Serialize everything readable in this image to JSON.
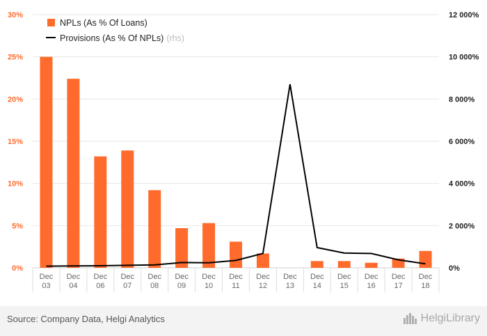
{
  "chart_data": {
    "type": "bar+line",
    "categories": [
      "Dec\n03",
      "Dec\n04",
      "Dec\n06",
      "Dec\n07",
      "Dec\n08",
      "Dec\n09",
      "Dec\n10",
      "Dec\n11",
      "Dec\n12",
      "Dec\n13",
      "Dec\n14",
      "Dec\n15",
      "Dec\n16",
      "Dec\n17",
      "Dec\n18"
    ],
    "series": [
      {
        "name": "NPLs (As % Of Loans)",
        "type": "bar",
        "axis": "left",
        "color": "#ff6b2c",
        "values": [
          25.0,
          22.4,
          13.2,
          13.9,
          9.2,
          4.7,
          5.3,
          3.1,
          1.7,
          null,
          0.8,
          0.8,
          0.6,
          1.1,
          2.0
        ]
      },
      {
        "name": "Provisions (As % Of NPLs)",
        "type": "line",
        "axis": "right",
        "color": "#000000",
        "values": [
          80,
          90,
          100,
          120,
          140,
          250,
          240,
          350,
          680,
          8700,
          960,
          700,
          680,
          380,
          190
        ]
      }
    ],
    "left_axis": {
      "min": 0,
      "max": 30,
      "ticks": [
        0,
        5,
        10,
        15,
        20,
        25,
        30
      ],
      "tick_labels": [
        "0%",
        "5%",
        "10%",
        "15%",
        "20%",
        "25%",
        "30%"
      ],
      "color": "#ff6b2c"
    },
    "right_axis": {
      "min": 0,
      "max": 12000,
      "ticks": [
        0,
        2000,
        4000,
        6000,
        8000,
        10000,
        12000
      ],
      "tick_labels": [
        "0%",
        "2 000%",
        "4 000%",
        "6 000%",
        "8 000%",
        "10 000%",
        "12 000%"
      ],
      "color": "#222222"
    },
    "legend": {
      "bar_label": "NPLs (As % Of Loans)",
      "line_label": "Provisions (As % Of NPLs)",
      "line_suffix": "(rhs)"
    }
  },
  "footer": {
    "source": "Source: Company Data, Helgi Analytics",
    "brand": "HelgiLibrary"
  }
}
